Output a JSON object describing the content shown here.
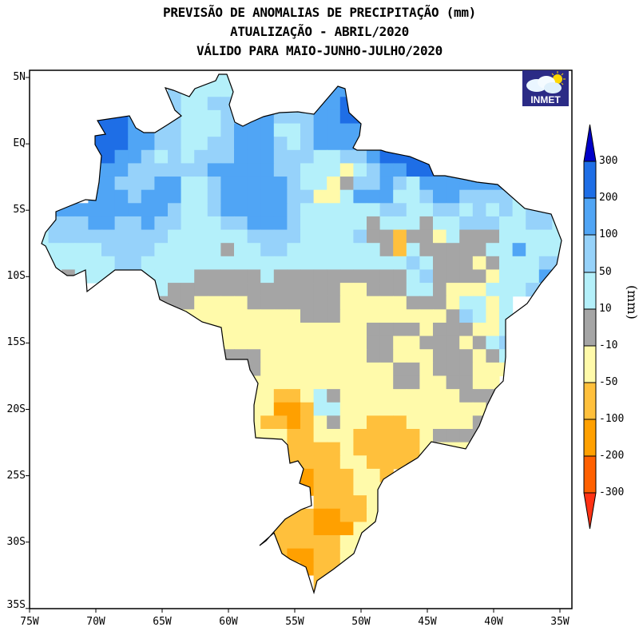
{
  "title": {
    "line1": "PREVISÃO DE ANOMALIAS DE PRECIPITAÇÃO (mm)",
    "line2": "ATUALIZAÇÃO - ABRIL/2020",
    "line3": "VÁLIDO PARA MAIO-JUNHO-JULHO/2020"
  },
  "logo": {
    "text": "INMET",
    "icon": "cloud-sun-icon"
  },
  "axes": {
    "lat_labels": [
      "5N",
      "EQ",
      "5S",
      "10S",
      "15S",
      "20S",
      "25S",
      "30S",
      "35S"
    ],
    "lon_labels": [
      "75W",
      "70W",
      "65W",
      "60W",
      "55W",
      "50W",
      "45W",
      "40W",
      "35W"
    ]
  },
  "colorbar": {
    "unit": "(mm)",
    "labels": [
      "300",
      "200",
      "100",
      "50",
      "10",
      "-10",
      "-50",
      "-100",
      "-200",
      "-300"
    ],
    "colors": {
      "above_300": "#0000c8",
      "200_300": "#1e6ee6",
      "100_200": "#50a5f5",
      "50_100": "#96d2fa",
      "10_50": "#b4f0fa",
      "-10_10": "#a5a5a5",
      "-50_-10": "#fffaaa",
      "-100_-50": "#ffc03c",
      "-200_-100": "#ffa000",
      "-300_-200": "#ff6000",
      "below_-300": "#ff3214"
    }
  },
  "anomaly_grid": {
    "legend": {
      "i": "200_300",
      "h": "100_200",
      "f": "50_100",
      "e": "10_50",
      "g": "-10_10",
      "d": "-50_-10",
      "c": "-100_-50",
      "b": "-200_-100",
      ".": "none"
    },
    "resolution_deg": 1,
    "rows": [
      "..............ee..........................",
      "...........feeee.......hh.................",
      "...........feeff......hhih................",
      ".....iiihhffeeeffhhfffhhiih...............",
      ".....iiihhffeeefhhheefhhhhh...............",
      ".....iiihhffeeffhhhfefhhhhiii.............",
      ".....iihhfefefffhhhfffeeffhiiiih..........",
      ".....hhhffffffhhhhhffeeedefhhiihhhhh......",
      ".....hhfffhheefhhhhhfeedgffhfehhhhhhhh....",
      ".....hhhfhhheefhhhhhffddehhheefhhffffefe..",
      "..hhhhhhhhhfeefhhhhhfeeeeeeffeeffefefeffe.",
      ".ffffhhffhffeeeffhhhfeeeeegeeegeefffeeffee",
      ".efffffffffeeeeeeffffeeeefggcggdegggeeeeee",
      ".eeeeeffffeeeeegeeffeeeeeeegcegggggeeheeee",
      ".geeeeeffeeeeeeeeeeeeeeeeeeeefegggdgeeeff.",
      "...geeeeeeeeegggggeggggggggggefggggdeeehhe.",
      "......eeeeegggggggggggggddgggeegdddeeefe..",
      "..........gggddddgggggggdddddgggdeede.....",
      "...........ddddddddddgggddddddddgfede.....",
      "...........dddddddddddddddggggdgggdde.....",
      "............ddddddddddddddggddgggdgef.....",
      "...............gggddddddddggdddgggdge.....",
      ".................gddddddddddggdgggddd.....",
      ".................dddddddddddggddggdd......",
      ".................ddccdegdddddddddgggd.....",
      ".................ddbbceedddddddddddge......",
      ".................dccbcdgddcccdddddg.......",
      ".................dddccdddcccccdgggg.......",
      "....................ccccdcccccdddd........",
      "....................ccccddccccd...........",
      ".....................bcccddc..............",
      ".....................bcccdd...............",
      "......................ccccd...............",
      "...................cccbbccd...............",
      "..................ccccbbbdd...............",
      ".................cccccccdd................",
      "..................ccbbccd.................",
      "....................cbccd.................",
      "......................cd..................",
      "......................c...................",
      ".........................................."
    ]
  }
}
